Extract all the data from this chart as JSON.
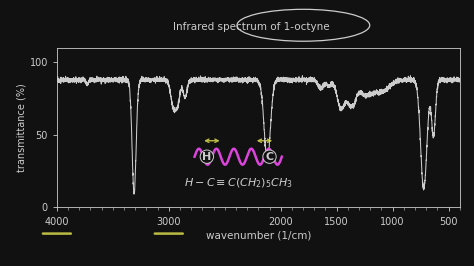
{
  "title": "Infrared spectrum of 1-octyne",
  "xlabel": "wavenumber (1/cm)",
  "ylabel": "transmittance (%)",
  "xlim": [
    4000,
    400
  ],
  "ylim": [
    0,
    110
  ],
  "yticks": [
    0,
    50,
    100
  ],
  "xticks": [
    4000,
    3000,
    2000,
    1500,
    1000,
    500
  ],
  "bg_color": "#111111",
  "line_color": "#cccccc",
  "text_color": "#cccccc",
  "annotation_color": "#cccccc",
  "formula_color": "#cccccc",
  "spring_color": "#dd44dd",
  "arrow_color": "#bbbb44",
  "underline_color": "#bbbb44",
  "figsize": [
    4.74,
    2.66
  ],
  "dpi": 100
}
